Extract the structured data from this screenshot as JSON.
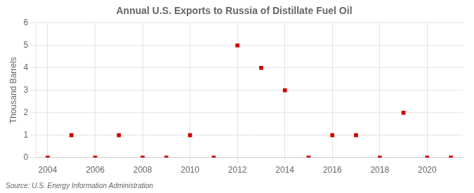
{
  "chart_data": {
    "type": "scatter",
    "title": "Annual U.S. Exports to Russia of Distillate Fuel Oil",
    "ylabel": "Thousand Barrels",
    "annotation": "Source: U.S. Energy Information Administration",
    "x": [
      2004,
      2005,
      2006,
      2007,
      2008,
      2009,
      2010,
      2011,
      2012,
      2013,
      2014,
      2015,
      2016,
      2017,
      2018,
      2019,
      2020,
      2021
    ],
    "values": [
      0,
      1,
      0,
      1,
      0,
      0,
      1,
      0,
      5,
      4,
      3,
      0,
      1,
      1,
      0,
      2,
      0,
      0
    ],
    "color": "#cc0000",
    "marker": "square",
    "xlim": [
      2003.5,
      2021.5
    ],
    "xticks": [
      2004,
      2006,
      2008,
      2010,
      2012,
      2014,
      2016,
      2018,
      2020
    ],
    "ylim": [
      0,
      6
    ],
    "yticks": [
      0,
      1,
      2,
      3,
      4,
      5,
      6
    ],
    "grid": true
  }
}
